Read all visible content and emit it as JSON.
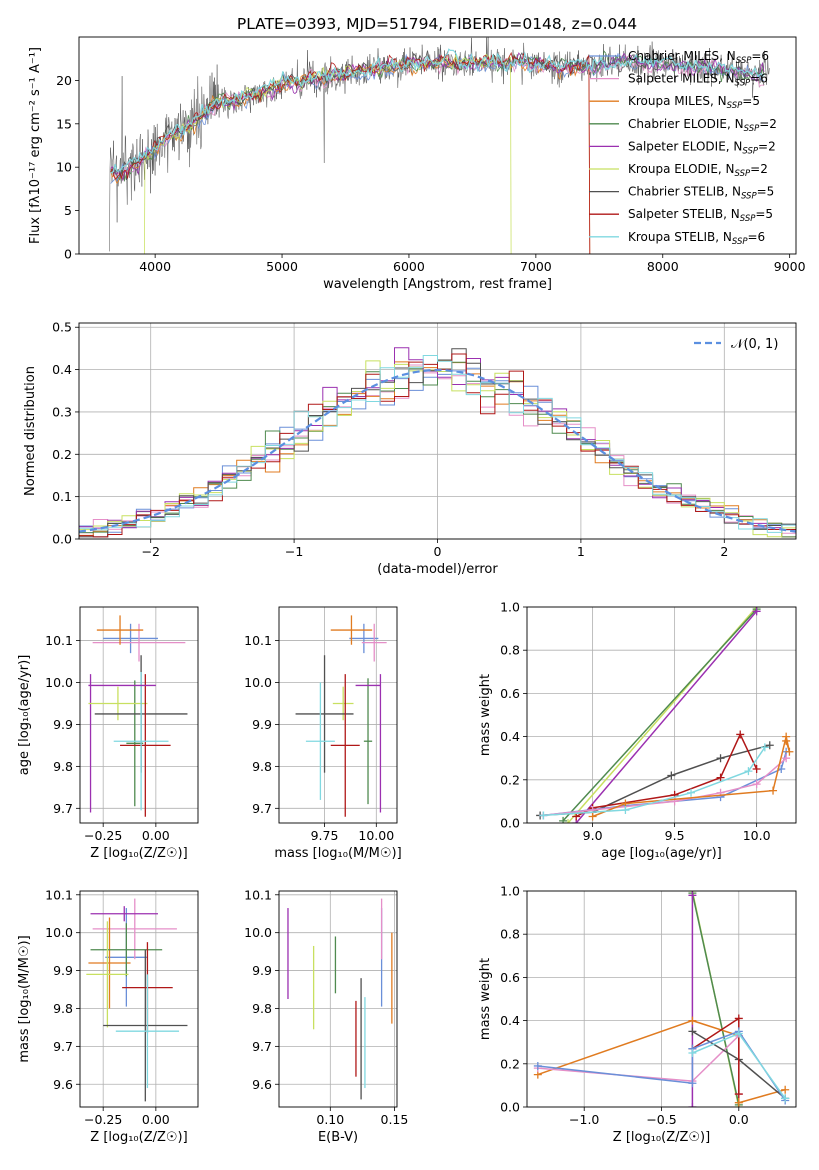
{
  "figure_title": "PLATE=0393, MJD=51794, FIBERID=0148, z=0.044",
  "models": [
    {
      "name": "Chabrier MILES",
      "nssp": "6",
      "color": "#6a8fd8"
    },
    {
      "name": "Salpeter MILES",
      "nssp": "6",
      "color": "#e58fc8"
    },
    {
      "name": "Kroupa MILES",
      "nssp": "5",
      "color": "#e07b20"
    },
    {
      "name": "Chabrier ELODIE",
      "nssp": "2",
      "color": "#4f8a4f"
    },
    {
      "name": "Salpeter ELODIE",
      "nssp": "2",
      "color": "#9b30b0"
    },
    {
      "name": "Kroupa ELODIE",
      "nssp": "2",
      "color": "#c8e060"
    },
    {
      "name": "Chabrier STELIB",
      "nssp": "5",
      "color": "#505050"
    },
    {
      "name": "Salpeter STELIB",
      "nssp": "5",
      "color": "#b01818"
    },
    {
      "name": "Kroupa STELIB",
      "nssp": "6",
      "color": "#80d8e0"
    }
  ],
  "chart_data": [
    {
      "id": "spectrum",
      "type": "line",
      "xlabel": "wavelength [Angstrom, rest frame]",
      "ylabel": "Flux [fλ10⁻¹⁷ erg cm⁻² s⁻¹ A⁻¹]",
      "xlim": [
        3400,
        9050
      ],
      "ylim": [
        0,
        25
      ],
      "xticks": [
        4000,
        5000,
        6000,
        7000,
        8000,
        9000
      ],
      "yticks": [
        0,
        5,
        10,
        15,
        20
      ],
      "legend": "upper right",
      "continuum": {
        "wavelength": [
          3650,
          3700,
          3800,
          3900,
          4000,
          4100,
          4200,
          4300,
          4400,
          4500,
          4600,
          4800,
          5000,
          5200,
          5400,
          5600,
          5800,
          6000,
          6200,
          6400,
          6600,
          6800,
          7000,
          7200,
          7400,
          7600,
          7800,
          8000,
          8200,
          8400,
          8600,
          8800
        ],
        "flux": [
          9.5,
          9.0,
          10.0,
          11.0,
          12.0,
          13.5,
          14.0,
          15.0,
          16.5,
          17.5,
          17.5,
          18.5,
          19.5,
          20.0,
          20.5,
          21.0,
          21.5,
          22.0,
          22.0,
          22.0,
          22.0,
          22.0,
          22.0,
          21.5,
          21.5,
          22.0,
          22.0,
          22.0,
          21.5,
          21.5,
          21.0,
          20.5
        ]
      }
    },
    {
      "id": "residuals",
      "type": "bar",
      "xlabel": "(data-model)/error",
      "ylabel": "Normed distribution",
      "xlim": [
        -2.5,
        2.5
      ],
      "ylim": [
        0,
        0.51
      ],
      "xticks": [
        -2,
        -1,
        0,
        1,
        2
      ],
      "xtick_labels": [
        "−2",
        "−1",
        "0",
        "1",
        "2"
      ],
      "yticks": [
        0.0,
        0.1,
        0.2,
        0.3,
        0.4,
        0.5
      ],
      "ytick_labels": [
        "0.0",
        "0.1",
        "0.2",
        "0.3",
        "0.4",
        "0.5"
      ],
      "bin_width": 0.1,
      "reference_label": "𝒩(0, 1)",
      "grid": true
    },
    {
      "id": "age_vs_Z",
      "type": "scatter",
      "xlabel": "Z [log₁₀(Z/Z☉)]",
      "ylabel": "age  [log₁₀(age/yr)]",
      "xlim": [
        -0.36,
        0.2
      ],
      "ylim": [
        9.665,
        10.18
      ],
      "xticks": [
        -0.25,
        0.0
      ],
      "xtick_labels": [
        "−0.25",
        "0.00"
      ],
      "yticks": [
        9.7,
        9.8,
        9.9,
        10.0,
        10.1
      ],
      "ytick_labels": [
        "9.7",
        "9.8",
        "9.9",
        "10.0",
        "10.1"
      ],
      "crosses": [
        {
          "c": 0,
          "x": -0.12,
          "xe": 0.13,
          "y": 10.105,
          "ye": 0.035
        },
        {
          "c": 1,
          "x": -0.08,
          "xe": 0.22,
          "y": 10.095,
          "ye": 0.045
        },
        {
          "c": 2,
          "x": -0.17,
          "xe": 0.11,
          "y": 10.125,
          "ye": 0.035
        },
        {
          "c": 3,
          "x": -0.1,
          "xe": 0.04,
          "y": 9.855,
          "ye": 0.15
        },
        {
          "c": 4,
          "x": -0.31,
          "xe": 0.0,
          "y": 9.855,
          "ye": 0.165
        },
        {
          "c": 5,
          "x": -0.18,
          "xe": 0.14,
          "y": 9.95,
          "ye": 0.04
        },
        {
          "c": 6,
          "x": -0.07,
          "xe": 0.22,
          "y": 9.925,
          "ye": 0.14
        },
        {
          "c": 7,
          "x": -0.05,
          "xe": 0.12,
          "y": 9.85,
          "ye": 0.17
        },
        {
          "c": 8,
          "x": -0.07,
          "xe": 0.13,
          "y": 9.86,
          "ye": 0.165
        },
        {
          "c": 4,
          "x": -0.16,
          "xe": 0.16,
          "y": 9.993,
          "ye": 0.0
        }
      ]
    },
    {
      "id": "age_vs_mass",
      "type": "scatter",
      "xlabel": "mass [log₁₀(M/M☉)]",
      "ylabel": "",
      "xlim": [
        9.53,
        10.1
      ],
      "ylim": [
        9.665,
        10.18
      ],
      "xticks": [
        9.75,
        10.0
      ],
      "xtick_labels": [
        "9.75",
        "10.00"
      ],
      "yticks": [
        9.7,
        9.8,
        9.9,
        10.0,
        10.1
      ],
      "ytick_labels": [
        "9.7",
        "9.8",
        "9.9",
        "10.0",
        "10.1"
      ],
      "crosses": [
        {
          "c": 0,
          "x": 9.94,
          "xe": 0.07,
          "y": 10.105,
          "ye": 0.035
        },
        {
          "c": 1,
          "x": 9.99,
          "xe": 0.06,
          "y": 10.095,
          "ye": 0.045
        },
        {
          "c": 2,
          "x": 9.88,
          "xe": 0.1,
          "y": 10.125,
          "ye": 0.035
        },
        {
          "c": 3,
          "x": 9.96,
          "xe": 0.02,
          "y": 9.86,
          "ye": 0.15
        },
        {
          "c": 4,
          "x": 10.02,
          "xe": 0.0,
          "y": 9.855,
          "ye": 0.165
        },
        {
          "c": 5,
          "x": 9.84,
          "xe": 0.05,
          "y": 9.95,
          "ye": 0.04
        },
        {
          "c": 6,
          "x": 9.75,
          "xe": 0.14,
          "y": 9.925,
          "ye": 0.14
        },
        {
          "c": 7,
          "x": 9.85,
          "xe": 0.07,
          "y": 9.85,
          "ye": 0.17
        },
        {
          "c": 8,
          "x": 9.73,
          "xe": 0.07,
          "y": 9.86,
          "ye": 0.14
        },
        {
          "c": 4,
          "x": 9.96,
          "xe": 0.06,
          "y": 9.993,
          "ye": 0.0
        }
      ]
    },
    {
      "id": "weight_vs_age",
      "type": "line",
      "xlabel": "age  [log₁₀(age/yr)]",
      "ylabel": "mass weight",
      "xlim": [
        8.6,
        10.24
      ],
      "ylim": [
        0,
        1.0
      ],
      "xticks": [
        9.0,
        9.5,
        10.0
      ],
      "xtick_labels": [
        "9.0",
        "9.5",
        "10.0"
      ],
      "yticks": [
        0.0,
        0.2,
        0.4,
        0.6,
        0.8,
        1.0
      ],
      "ytick_labels": [
        "0.0",
        "0.2",
        "0.4",
        "0.6",
        "0.8",
        "1.0"
      ],
      "series": [
        {
          "c": 5,
          "x": [
            8.85,
            10.0
          ],
          "y": [
            0.0,
            1.0
          ]
        },
        {
          "c": 3,
          "x": [
            8.82,
            10.0
          ],
          "y": [
            0.01,
            0.99
          ]
        },
        {
          "c": 4,
          "x": [
            8.9,
            10.0
          ],
          "y": [
            0.0,
            0.98
          ]
        },
        {
          "c": 6,
          "x": [
            8.68,
            9.0,
            9.48,
            9.78,
            10.08
          ],
          "y": [
            0.035,
            0.05,
            0.22,
            0.3,
            0.36
          ]
        },
        {
          "c": 7,
          "x": [
            8.9,
            9.0,
            9.5,
            9.78,
            9.9,
            10.0
          ],
          "y": [
            0.03,
            0.07,
            0.13,
            0.21,
            0.41,
            0.25
          ]
        },
        {
          "c": 0,
          "x": [
            8.7,
            9.2,
            9.78,
            10.15,
            10.18
          ],
          "y": [
            0.035,
            0.08,
            0.12,
            0.25,
            0.33
          ]
        },
        {
          "c": 1,
          "x": [
            8.7,
            9.0,
            9.5,
            9.78,
            10.0,
            10.18
          ],
          "y": [
            0.035,
            0.06,
            0.1,
            0.14,
            0.18,
            0.3
          ]
        },
        {
          "c": 2,
          "x": [
            9.0,
            9.2,
            10.1,
            10.18,
            10.2,
            10.18
          ],
          "y": [
            0.03,
            0.09,
            0.15,
            0.4,
            0.33,
            0.38
          ]
        },
        {
          "c": 8,
          "x": [
            8.7,
            9.2,
            9.6,
            9.95,
            10.05
          ],
          "y": [
            0.035,
            0.06,
            0.14,
            0.24,
            0.35
          ]
        }
      ]
    },
    {
      "id": "mass_vs_Z",
      "type": "scatter",
      "xlabel": "Z [log₁₀(Z/Z☉)]",
      "ylabel": "mass [log₁₀(M/M☉)]",
      "xlim": [
        -0.36,
        0.2
      ],
      "ylim": [
        9.54,
        10.11
      ],
      "xticks": [
        -0.25,
        0.0
      ],
      "xtick_labels": [
        "−0.25",
        "0.00"
      ],
      "yticks": [
        9.6,
        9.7,
        9.8,
        9.9,
        10.0,
        10.1
      ],
      "ytick_labels": [
        "9.6",
        "9.7",
        "9.8",
        "9.9",
        "10.0",
        "10.1"
      ],
      "crosses": [
        {
          "c": 0,
          "x": -0.14,
          "xe": 0.1,
          "y": 9.935,
          "ye": 0.13
        },
        {
          "c": 1,
          "x": -0.1,
          "xe": 0.2,
          "y": 10.01,
          "ye": 0.08
        },
        {
          "c": 2,
          "x": -0.22,
          "xe": 0.1,
          "y": 9.92,
          "ye": 0.12
        },
        {
          "c": 3,
          "x": -0.14,
          "xe": 0.17,
          "y": 9.955,
          "ye": 0.07
        },
        {
          "c": 4,
          "x": -0.15,
          "xe": 0.16,
          "y": 10.05,
          "ye": 0.02
        },
        {
          "c": 5,
          "x": -0.23,
          "xe": 0.1,
          "y": 9.89,
          "ye": 0.14
        },
        {
          "c": 6,
          "x": -0.05,
          "xe": 0.2,
          "y": 9.755,
          "ye": 0.2
        },
        {
          "c": 7,
          "x": -0.04,
          "xe": 0.12,
          "y": 9.855,
          "ye": 0.12
        },
        {
          "c": 8,
          "x": -0.04,
          "xe": 0.15,
          "y": 9.74,
          "ye": 0.15
        }
      ]
    },
    {
      "id": "mass_vs_ebv",
      "type": "scatter",
      "xlabel": "E(B-V)",
      "ylabel": "",
      "xlim": [
        0.06,
        0.152
      ],
      "ylim": [
        9.54,
        10.11
      ],
      "xticks": [
        0.1,
        0.15
      ],
      "xtick_labels": [
        "0.10",
        "0.15"
      ],
      "yticks": [
        9.6,
        9.7,
        9.8,
        9.9,
        10.0,
        10.1
      ],
      "ytick_labels": [
        "9.6",
        "9.7",
        "9.8",
        "9.9",
        "10.0",
        "10.1"
      ],
      "crosses": [
        {
          "c": 0,
          "x": 0.14,
          "xe": 0.0,
          "y": 9.935,
          "ye": 0.13
        },
        {
          "c": 1,
          "x": 0.14,
          "xe": 0.0,
          "y": 10.01,
          "ye": 0.08
        },
        {
          "c": 2,
          "x": 0.148,
          "xe": 0.0,
          "y": 9.88,
          "ye": 0.12
        },
        {
          "c": 3,
          "x": 0.104,
          "xe": 0.0,
          "y": 9.915,
          "ye": 0.075
        },
        {
          "c": 4,
          "x": 0.067,
          "xe": 0.0,
          "y": 9.945,
          "ye": 0.12
        },
        {
          "c": 5,
          "x": 0.087,
          "xe": 0.0,
          "y": 9.855,
          "ye": 0.11
        },
        {
          "c": 6,
          "x": 0.124,
          "xe": 0.0,
          "y": 9.72,
          "ye": 0.16
        },
        {
          "c": 7,
          "x": 0.12,
          "xe": 0.0,
          "y": 9.72,
          "ye": 0.1
        },
        {
          "c": 8,
          "x": 0.127,
          "xe": 0.0,
          "y": 9.71,
          "ye": 0.12
        }
      ]
    },
    {
      "id": "weight_vs_Z",
      "type": "line",
      "xlabel": "Z [log₁₀(Z/Z☉)]",
      "ylabel": "mass weight",
      "xlim": [
        -1.37,
        0.37
      ],
      "ylim": [
        0,
        1.0
      ],
      "xticks": [
        -1.0,
        -0.5,
        0.0
      ],
      "xtick_labels": [
        "−1.0",
        "−0.5",
        "0.0"
      ],
      "yticks": [
        0.0,
        0.2,
        0.4,
        0.6,
        0.8,
        1.0
      ],
      "ytick_labels": [
        "0.0",
        "0.2",
        "0.4",
        "0.6",
        "0.8",
        "1.0"
      ],
      "series": [
        {
          "c": 5,
          "x": [
            -0.3,
            0.0
          ],
          "y": [
            1.0,
            0.0
          ]
        },
        {
          "c": 3,
          "x": [
            -0.3,
            0.0
          ],
          "y": [
            0.99,
            0.01
          ]
        },
        {
          "c": 4,
          "x": [
            -0.3,
            -0.3
          ],
          "y": [
            0.98,
            0.0
          ]
        },
        {
          "c": 2,
          "x": [
            -1.3,
            -0.3,
            0.0,
            0.0,
            0.3
          ],
          "y": [
            0.15,
            0.4,
            0.33,
            0.02,
            0.08
          ]
        },
        {
          "c": 1,
          "x": [
            -1.3,
            -0.3,
            0.0,
            0.0
          ],
          "y": [
            0.18,
            0.12,
            0.33,
            0.06
          ]
        },
        {
          "c": 6,
          "x": [
            -0.3,
            0.0,
            0.3
          ],
          "y": [
            0.35,
            0.22,
            0.04
          ]
        },
        {
          "c": 7,
          "x": [
            -0.3,
            0.0,
            0.0
          ],
          "y": [
            0.27,
            0.41,
            0.06
          ]
        },
        {
          "c": 0,
          "x": [
            -1.3,
            -0.3,
            -0.3,
            0.0,
            0.3
          ],
          "y": [
            0.19,
            0.11,
            0.27,
            0.35,
            0.03
          ]
        },
        {
          "c": 8,
          "x": [
            -0.3,
            0.0,
            0.3
          ],
          "y": [
            0.25,
            0.34,
            0.04
          ]
        }
      ]
    }
  ]
}
